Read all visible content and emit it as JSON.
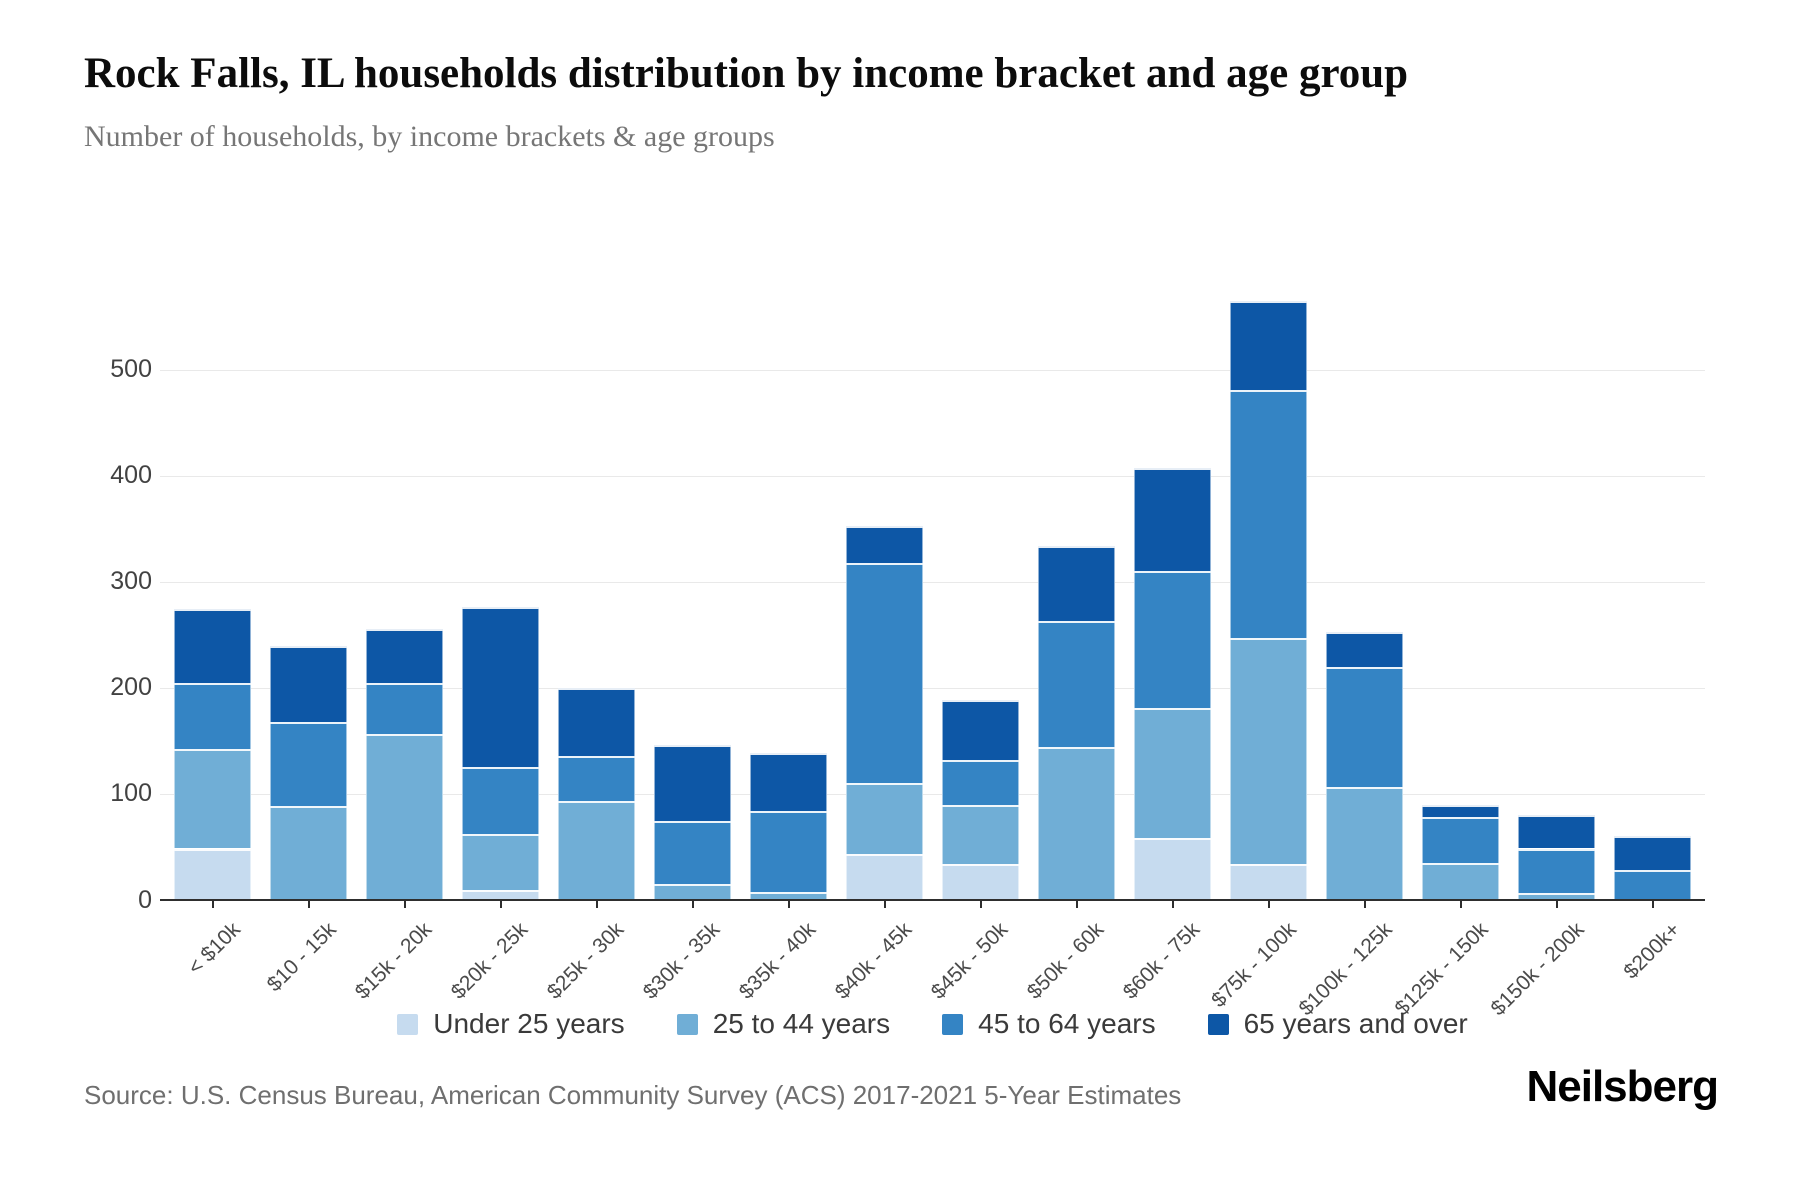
{
  "page": {
    "title": "Rock Falls, IL households distribution by income bracket and age group",
    "subtitle": "Number of households, by income brackets & age groups",
    "source": "Source: U.S. Census Bureau, American Community Survey (ACS) 2017-2021 5-Year Estimates",
    "brand": "Neilsberg"
  },
  "chart_data": {
    "type": "bar",
    "stacked": true,
    "title": "Rock Falls, IL households distribution by income bracket and age group",
    "subtitle": "Number of households, by income brackets & age groups",
    "xlabel": "",
    "ylabel": "",
    "ylim": [
      0,
      580
    ],
    "yticks": [
      0,
      100,
      200,
      300,
      400,
      500
    ],
    "grid": "horizontal",
    "legend_position": "bottom",
    "categories": [
      "< $10k",
      "$10 - 15k",
      "$15k - 20k",
      "$20k - 25k",
      "$25k - 30k",
      "$30k - 35k",
      "$35k - 40k",
      "$40k - 45k",
      "$45k - 50k",
      "$50k - 60k",
      "$60k - 75k",
      "$75k - 100k",
      "$100k - 125k",
      "$125k - 150k",
      "$150k - 200k",
      "$200k+"
    ],
    "series": [
      {
        "name": "Under 25 years",
        "color": "#c6dbef",
        "values": [
          49,
          0,
          0,
          10,
          0,
          0,
          0,
          44,
          34,
          0,
          59,
          34,
          0,
          0,
          0,
          0
        ]
      },
      {
        "name": "25 to 44 years",
        "color": "#70aed6",
        "values": [
          94,
          89,
          157,
          53,
          94,
          16,
          8,
          67,
          56,
          145,
          122,
          213,
          107,
          35,
          7,
          0
        ]
      },
      {
        "name": "45 to 64 years",
        "color": "#3484c4",
        "values": [
          62,
          79,
          48,
          63,
          42,
          59,
          76,
          207,
          42,
          118,
          130,
          234,
          113,
          44,
          42,
          29
        ]
      },
      {
        "name": "65 years and over",
        "color": "#0d57a6",
        "values": [
          70,
          72,
          51,
          151,
          64,
          72,
          55,
          35,
          57,
          71,
          97,
          84,
          33,
          11,
          32,
          32
        ]
      }
    ],
    "totals": [
      275,
      240,
      256,
      277,
      200,
      147,
      139,
      353,
      189,
      334,
      408,
      565,
      253,
      90,
      81,
      61
    ]
  }
}
